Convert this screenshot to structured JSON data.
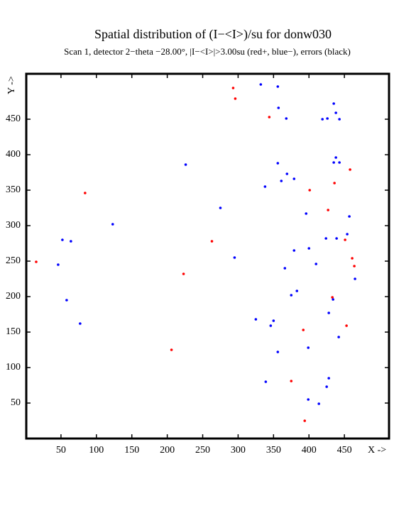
{
  "chart_data": {
    "type": "scatter",
    "title": "Spatial distribution of (I−<I>)/su for donw030",
    "subtitle": "Scan  1, detector 2−theta −28.00°, |I−<I>|>3.00su (red+, blue−), errors (black)",
    "x_label": "X ->",
    "y_label": "Y ->",
    "xlim": [
      1,
      513
    ],
    "ylim": [
      0,
      514
    ],
    "xticks": [
      50,
      100,
      150,
      200,
      250,
      300,
      350,
      400,
      450
    ],
    "yticks": [
      50,
      100,
      150,
      200,
      250,
      300,
      350,
      400,
      450
    ],
    "series": [
      {
        "color": "#ff0000",
        "x": [
          293,
          296,
          344,
          84,
          401,
          436,
          458,
          427,
          263,
          451,
          15,
          461,
          464,
          223,
          433,
          392,
          453,
          206,
          375,
          394
        ],
        "values": [
          494,
          479,
          453,
          346,
          350,
          360,
          379,
          322,
          278,
          280,
          249,
          254,
          243,
          232,
          199,
          153,
          159,
          125,
          81,
          25
        ]
      },
      {
        "color": "#0000ff",
        "x": [
          332,
          356,
          435,
          357,
          438,
          368,
          419,
          426,
          443,
          438,
          435,
          443,
          356,
          226,
          369,
          379,
          361,
          338,
          275,
          396,
          457,
          123,
          52,
          64,
          424,
          439,
          454,
          400,
          379,
          295,
          46,
          410,
          366,
          465,
          383,
          375,
          434,
          58,
          428,
          325,
          350,
          346,
          77,
          442,
          399,
          356,
          339,
          428,
          425,
          399,
          414
        ],
        "values": [
          499,
          496,
          472,
          466,
          459,
          451,
          450,
          451,
          450,
          396,
          389,
          389,
          388,
          386,
          373,
          366,
          363,
          355,
          325,
          317,
          313,
          302,
          280,
          278,
          282,
          282,
          288,
          268,
          265,
          255,
          245,
          246,
          240,
          225,
          208,
          202,
          196,
          195,
          177,
          168,
          166,
          159,
          162,
          143,
          128,
          122,
          80,
          85,
          73,
          55,
          49
        ]
      }
    ]
  }
}
